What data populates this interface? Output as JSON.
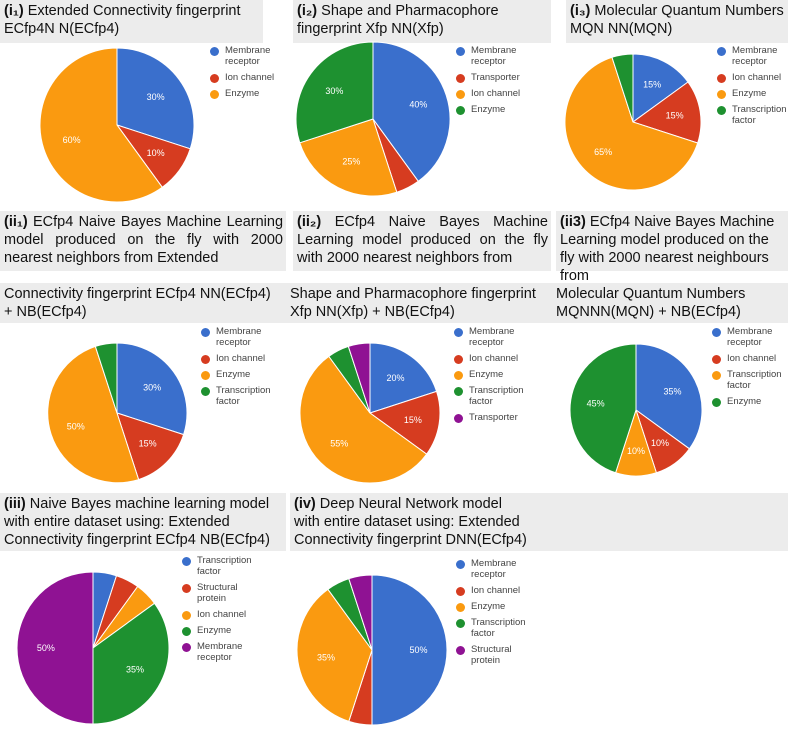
{
  "colors": {
    "blue": "#3A6FCC",
    "red": "#D63C20",
    "orange": "#FA9A10",
    "green": "#1E9130",
    "purple": "#8F1293",
    "title_bg": "#ECECEC"
  },
  "chart_data": [
    {
      "type": "pie",
      "id": "i1",
      "title_label": "(i₁)",
      "title_text": "Extended Connectivity fingerprint ECfp4N N(ECfp4)",
      "legend": [
        "Membrane receptor",
        "Ion channel",
        "Enzyme"
      ],
      "slices": [
        {
          "name": "Membrane receptor",
          "value": 30,
          "label": "30%",
          "color": "#3A6FCC"
        },
        {
          "name": "Ion channel",
          "value": 10,
          "label": "10%",
          "color": "#D63C20"
        },
        {
          "name": "Enzyme",
          "value": 60,
          "label": "60%",
          "color": "#FA9A10"
        }
      ]
    },
    {
      "type": "pie",
      "id": "i2",
      "title_label": "(i₂)",
      "title_text": "Shape and Pharmacophore fingerprint Xfp NN(Xfp)",
      "legend": [
        "Membrane receptor",
        "Transporter",
        "Ion channel",
        "Enzyme"
      ],
      "slices": [
        {
          "name": "Membrane receptor",
          "value": 40,
          "label": "40%",
          "color": "#3A6FCC"
        },
        {
          "name": "Transporter",
          "value": 5,
          "label": "",
          "color": "#D63C20"
        },
        {
          "name": "Ion channel",
          "value": 25,
          "label": "25%",
          "color": "#FA9A10"
        },
        {
          "name": "Enzyme",
          "value": 30,
          "label": "30%",
          "color": "#1E9130"
        }
      ]
    },
    {
      "type": "pie",
      "id": "i3",
      "title_label": "(i₃)",
      "title_text": "Molecular Quantum Numbers MQN NN(MQN)",
      "legend": [
        "Membrane receptor",
        "Ion channel",
        "Enzyme",
        "Transcription factor"
      ],
      "slices": [
        {
          "name": "Membrane receptor",
          "value": 15,
          "label": "15%",
          "color": "#3A6FCC"
        },
        {
          "name": "Ion channel",
          "value": 15,
          "label": "15%",
          "color": "#D63C20"
        },
        {
          "name": "Enzyme",
          "value": 65,
          "label": "65%",
          "color": "#FA9A10"
        },
        {
          "name": "Transcription factor",
          "value": 5,
          "label": "",
          "color": "#1E9130"
        }
      ]
    },
    {
      "type": "pie",
      "id": "ii1",
      "title_label": "(ii₁)",
      "title_text_a": "ECfp4 Naive Bayes Machine Learning model produced on the fly with 2000 nearest neighbors from Extended",
      "title_text_b": "Connectivity fingerprint ECfp4 NN(ECfp4) + NB(ECfp4)",
      "legend": [
        "Membrane receptor",
        "Ion channel",
        "Enzyme",
        "Transcription factor"
      ],
      "slices": [
        {
          "name": "Membrane receptor",
          "value": 30,
          "label": "30%",
          "color": "#3A6FCC"
        },
        {
          "name": "Ion channel",
          "value": 15,
          "label": "15%",
          "color": "#D63C20"
        },
        {
          "name": "Enzyme",
          "value": 50,
          "label": "50%",
          "color": "#FA9A10"
        },
        {
          "name": "Transcription factor",
          "value": 5,
          "label": "",
          "color": "#1E9130"
        }
      ]
    },
    {
      "type": "pie",
      "id": "ii2",
      "title_label": "(ii₂)",
      "title_text_a": "ECfp4 Naive Bayes Machine Learning model produced on the fly with 2000 nearest neighbors from",
      "title_text_b": "Shape and Pharmacophore fingerprint Xfp NN(Xfp) + NB(ECfp4)",
      "legend": [
        "Membrane receptor",
        "Ion channel",
        "Enzyme",
        "Transcription factor",
        "Transporter"
      ],
      "slices": [
        {
          "name": "Membrane receptor",
          "value": 20,
          "label": "20%",
          "color": "#3A6FCC"
        },
        {
          "name": "Ion channel",
          "value": 15,
          "label": "15%",
          "color": "#D63C20"
        },
        {
          "name": "Enzyme",
          "value": 55,
          "label": "55%",
          "color": "#FA9A10"
        },
        {
          "name": "Transcription factor",
          "value": 5,
          "label": "",
          "color": "#1E9130"
        },
        {
          "name": "Transporter",
          "value": 5,
          "label": "",
          "color": "#8F1293"
        }
      ]
    },
    {
      "type": "pie",
      "id": "ii3",
      "title_label": "(ii3)",
      "title_text_a": "ECfp4 Naive Bayes Machine Learning model produced on the fly with 2000 nearest neighbours from",
      "title_text_b": "Molecular Quantum Numbers MQNNN(MQN) + NB(ECfp4)",
      "legend": [
        "Membrane receptor",
        "Ion channel",
        "Transcription factor",
        "Enzyme"
      ],
      "slices": [
        {
          "name": "Membrane receptor",
          "value": 35,
          "label": "35%",
          "color": "#3A6FCC"
        },
        {
          "name": "Ion channel",
          "value": 10,
          "label": "10%",
          "color": "#D63C20"
        },
        {
          "name": "Transcription factor",
          "value": 10,
          "label": "10%",
          "color": "#FA9A10"
        },
        {
          "name": "Enzyme",
          "value": 45,
          "label": "45%",
          "color": "#1E9130"
        }
      ]
    },
    {
      "type": "pie",
      "id": "iii",
      "title_label": "(iii)",
      "title_text": "Naive Bayes machine learning model with entire dataset using: Extended Connectivity fingerprint ECfp4 NB(ECfp4)",
      "legend": [
        "Transcription factor",
        "Structural protein",
        "Ion channel",
        "Enzyme",
        "Membrane receptor"
      ],
      "slices": [
        {
          "name": "Transcription factor",
          "value": 5,
          "label": "",
          "color": "#3A6FCC"
        },
        {
          "name": "Structural protein",
          "value": 5,
          "label": "",
          "color": "#D63C20"
        },
        {
          "name": "Ion channel",
          "value": 5,
          "label": "",
          "color": "#FA9A10"
        },
        {
          "name": "Enzyme",
          "value": 35,
          "label": "35%",
          "color": "#1E9130"
        },
        {
          "name": "Membrane receptor",
          "value": 50,
          "label": "50%",
          "color": "#8F1293"
        }
      ]
    },
    {
      "type": "pie",
      "id": "iv",
      "title_label": "(iv)",
      "title_text": "Deep Neural Network model with entire dataset using: Extended Connectivity fingerprint DNN(ECfp4)",
      "legend": [
        "Membrane receptor",
        "Ion channel",
        "Enzyme",
        "Transcription factor",
        "Structural protein"
      ],
      "slices": [
        {
          "name": "Membrane receptor",
          "value": 50,
          "label": "50%",
          "color": "#3A6FCC"
        },
        {
          "name": "Ion channel",
          "value": 5,
          "label": "",
          "color": "#D63C20"
        },
        {
          "name": "Enzyme",
          "value": 35,
          "label": "35%",
          "color": "#FA9A10"
        },
        {
          "name": "Transcription factor",
          "value": 5,
          "label": "",
          "color": "#1E9130"
        },
        {
          "name": "Structural protein",
          "value": 5,
          "label": "",
          "color": "#8F1293"
        }
      ]
    }
  ]
}
